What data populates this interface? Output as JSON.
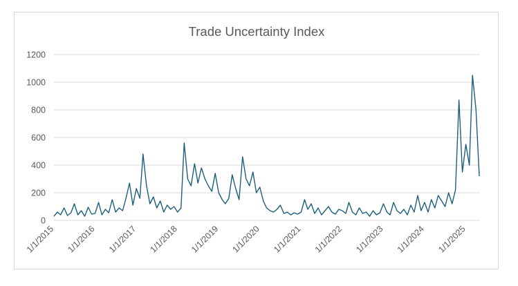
{
  "chart_data": {
    "type": "line",
    "title": "Trade Uncertainty Index",
    "xlabel": "",
    "ylabel": "",
    "x_range": [
      "2015-01-01",
      "2025-04-30"
    ],
    "ylim": [
      0,
      1200
    ],
    "y_ticks": [
      0,
      200,
      400,
      600,
      800,
      1000,
      1200
    ],
    "x_tick_dates": [
      "2015-01-01",
      "2016-01-01",
      "2017-01-01",
      "2018-01-01",
      "2019-01-01",
      "2020-01-01",
      "2021-01-01",
      "2022-01-01",
      "2023-01-01",
      "2024-01-01",
      "2025-01-01"
    ],
    "x_tick_labels": [
      "1/1/2015",
      "1/1/2016",
      "1/1/2017",
      "1/1/2018",
      "1/1/2019",
      "1/1/2020",
      "1/1/2021",
      "1/1/2022",
      "1/1/2023",
      "1/1/2024",
      "1/1/2025"
    ],
    "grid": "horizontal",
    "legend": "none",
    "colors": {
      "series": "#1b5e7b",
      "gridline": "#d9d9d9",
      "text": "#595959",
      "border": "#d9d9d9"
    },
    "series": [
      {
        "name": "",
        "points": [
          [
            "2015-01-01",
            30
          ],
          [
            "2015-02-01",
            60
          ],
          [
            "2015-03-01",
            40
          ],
          [
            "2015-04-01",
            90
          ],
          [
            "2015-05-01",
            35
          ],
          [
            "2015-06-01",
            55
          ],
          [
            "2015-07-01",
            120
          ],
          [
            "2015-08-01",
            40
          ],
          [
            "2015-09-01",
            70
          ],
          [
            "2015-10-01",
            30
          ],
          [
            "2015-11-01",
            95
          ],
          [
            "2015-12-01",
            45
          ],
          [
            "2016-01-01",
            50
          ],
          [
            "2016-02-01",
            130
          ],
          [
            "2016-03-01",
            40
          ],
          [
            "2016-04-01",
            80
          ],
          [
            "2016-05-01",
            55
          ],
          [
            "2016-06-01",
            150
          ],
          [
            "2016-07-01",
            60
          ],
          [
            "2016-08-01",
            90
          ],
          [
            "2016-09-01",
            70
          ],
          [
            "2016-10-01",
            160
          ],
          [
            "2016-11-01",
            270
          ],
          [
            "2016-12-01",
            110
          ],
          [
            "2017-01-01",
            230
          ],
          [
            "2017-02-01",
            160
          ],
          [
            "2017-03-01",
            480
          ],
          [
            "2017-04-01",
            250
          ],
          [
            "2017-05-01",
            120
          ],
          [
            "2017-06-01",
            170
          ],
          [
            "2017-07-01",
            90
          ],
          [
            "2017-08-01",
            140
          ],
          [
            "2017-09-01",
            60
          ],
          [
            "2017-10-01",
            110
          ],
          [
            "2017-11-01",
            80
          ],
          [
            "2017-12-01",
            100
          ],
          [
            "2018-01-01",
            60
          ],
          [
            "2018-02-01",
            90
          ],
          [
            "2018-03-01",
            560
          ],
          [
            "2018-04-01",
            300
          ],
          [
            "2018-05-01",
            250
          ],
          [
            "2018-06-01",
            410
          ],
          [
            "2018-07-01",
            270
          ],
          [
            "2018-08-01",
            380
          ],
          [
            "2018-09-01",
            300
          ],
          [
            "2018-10-01",
            250
          ],
          [
            "2018-11-01",
            210
          ],
          [
            "2018-12-01",
            340
          ],
          [
            "2019-01-01",
            200
          ],
          [
            "2019-02-01",
            150
          ],
          [
            "2019-03-01",
            120
          ],
          [
            "2019-04-01",
            160
          ],
          [
            "2019-05-01",
            330
          ],
          [
            "2019-06-01",
            230
          ],
          [
            "2019-07-01",
            150
          ],
          [
            "2019-08-01",
            460
          ],
          [
            "2019-09-01",
            300
          ],
          [
            "2019-10-01",
            250
          ],
          [
            "2019-11-01",
            350
          ],
          [
            "2019-12-01",
            200
          ],
          [
            "2020-01-01",
            240
          ],
          [
            "2020-02-01",
            140
          ],
          [
            "2020-03-01",
            90
          ],
          [
            "2020-04-01",
            70
          ],
          [
            "2020-05-01",
            60
          ],
          [
            "2020-06-01",
            80
          ],
          [
            "2020-07-01",
            110
          ],
          [
            "2020-08-01",
            50
          ],
          [
            "2020-09-01",
            60
          ],
          [
            "2020-10-01",
            40
          ],
          [
            "2020-11-01",
            55
          ],
          [
            "2020-12-01",
            45
          ],
          [
            "2021-01-01",
            60
          ],
          [
            "2021-02-01",
            150
          ],
          [
            "2021-03-01",
            80
          ],
          [
            "2021-04-01",
            120
          ],
          [
            "2021-05-01",
            50
          ],
          [
            "2021-06-01",
            90
          ],
          [
            "2021-07-01",
            40
          ],
          [
            "2021-08-01",
            70
          ],
          [
            "2021-09-01",
            100
          ],
          [
            "2021-10-01",
            60
          ],
          [
            "2021-11-01",
            45
          ],
          [
            "2021-12-01",
            80
          ],
          [
            "2022-01-01",
            70
          ],
          [
            "2022-02-01",
            50
          ],
          [
            "2022-03-01",
            130
          ],
          [
            "2022-04-01",
            60
          ],
          [
            "2022-05-01",
            40
          ],
          [
            "2022-06-01",
            90
          ],
          [
            "2022-07-01",
            50
          ],
          [
            "2022-08-01",
            60
          ],
          [
            "2022-09-01",
            30
          ],
          [
            "2022-10-01",
            70
          ],
          [
            "2022-11-01",
            40
          ],
          [
            "2022-12-01",
            55
          ],
          [
            "2023-01-01",
            120
          ],
          [
            "2023-02-01",
            60
          ],
          [
            "2023-03-01",
            40
          ],
          [
            "2023-04-01",
            130
          ],
          [
            "2023-05-01",
            70
          ],
          [
            "2023-06-01",
            50
          ],
          [
            "2023-07-01",
            80
          ],
          [
            "2023-08-01",
            40
          ],
          [
            "2023-09-01",
            110
          ],
          [
            "2023-10-01",
            60
          ],
          [
            "2023-11-01",
            180
          ],
          [
            "2023-12-01",
            70
          ],
          [
            "2024-01-01",
            130
          ],
          [
            "2024-02-01",
            60
          ],
          [
            "2024-03-01",
            150
          ],
          [
            "2024-04-01",
            90
          ],
          [
            "2024-05-01",
            180
          ],
          [
            "2024-06-01",
            140
          ],
          [
            "2024-07-01",
            100
          ],
          [
            "2024-08-01",
            200
          ],
          [
            "2024-09-01",
            120
          ],
          [
            "2024-10-01",
            220
          ],
          [
            "2024-11-01",
            870
          ],
          [
            "2024-12-01",
            350
          ],
          [
            "2025-01-01",
            550
          ],
          [
            "2025-02-01",
            400
          ],
          [
            "2025-03-01",
            1050
          ],
          [
            "2025-04-01",
            800
          ],
          [
            "2025-04-30",
            320
          ]
        ]
      }
    ]
  }
}
